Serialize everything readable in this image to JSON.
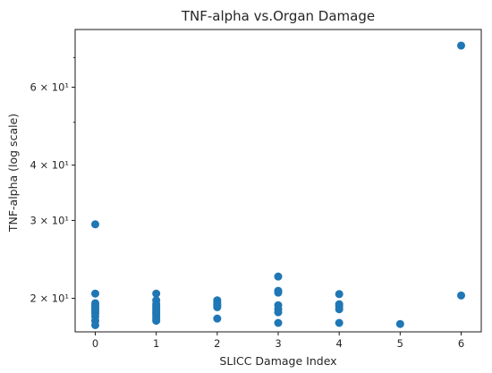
{
  "chart_data": {
    "type": "scatter",
    "title": "TNF-alpha vs.Organ Damage",
    "xlabel": "SLICC Damage Index",
    "ylabel": "TNF-alpha (log scale)",
    "y_scale": "log",
    "xlim": [
      -0.33,
      6.33
    ],
    "ylim": [
      16.8,
      81
    ],
    "x_ticks": [
      {
        "value": 0,
        "label": "0"
      },
      {
        "value": 1,
        "label": "1"
      },
      {
        "value": 2,
        "label": "2"
      },
      {
        "value": 3,
        "label": "3"
      },
      {
        "value": 4,
        "label": "4"
      },
      {
        "value": 5,
        "label": "5"
      },
      {
        "value": 6,
        "label": "6"
      }
    ],
    "y_ticks": [
      {
        "value": 20,
        "label": "2 × 10¹"
      },
      {
        "value": 30,
        "label": "3 × 10¹"
      },
      {
        "value": 40,
        "label": "4 × 10¹"
      },
      {
        "value": 60,
        "label": "6 × 10¹"
      }
    ],
    "y_minor_ticks": [
      50,
      70
    ],
    "grid": false,
    "color": "#1f77b4",
    "points": [
      {
        "x": 0,
        "y": 29.4
      },
      {
        "x": 0,
        "y": 20.5
      },
      {
        "x": 0,
        "y": 19.5
      },
      {
        "x": 0,
        "y": 19.3
      },
      {
        "x": 0,
        "y": 19.1
      },
      {
        "x": 0,
        "y": 18.9
      },
      {
        "x": 0,
        "y": 18.7
      },
      {
        "x": 0,
        "y": 18.5
      },
      {
        "x": 0,
        "y": 18.2
      },
      {
        "x": 0,
        "y": 17.8
      },
      {
        "x": 0,
        "y": 17.4
      },
      {
        "x": 1,
        "y": 20.5
      },
      {
        "x": 1,
        "y": 19.8
      },
      {
        "x": 1,
        "y": 19.4
      },
      {
        "x": 1,
        "y": 19.2
      },
      {
        "x": 1,
        "y": 19.0
      },
      {
        "x": 1,
        "y": 18.85
      },
      {
        "x": 1,
        "y": 18.7
      },
      {
        "x": 1,
        "y": 18.55
      },
      {
        "x": 1,
        "y": 18.4
      },
      {
        "x": 1,
        "y": 18.2
      },
      {
        "x": 1,
        "y": 18.0
      },
      {
        "x": 1,
        "y": 17.8
      },
      {
        "x": 2,
        "y": 19.8
      },
      {
        "x": 2,
        "y": 19.6
      },
      {
        "x": 2,
        "y": 19.4
      },
      {
        "x": 2,
        "y": 19.25
      },
      {
        "x": 2,
        "y": 19.1
      },
      {
        "x": 2,
        "y": 18.0
      },
      {
        "x": 3,
        "y": 22.4
      },
      {
        "x": 3,
        "y": 20.8
      },
      {
        "x": 3,
        "y": 20.6
      },
      {
        "x": 3,
        "y": 19.3
      },
      {
        "x": 3,
        "y": 18.9
      },
      {
        "x": 3,
        "y": 18.6
      },
      {
        "x": 3,
        "y": 17.6
      },
      {
        "x": 4,
        "y": 20.45
      },
      {
        "x": 4,
        "y": 19.4
      },
      {
        "x": 4,
        "y": 19.2
      },
      {
        "x": 4,
        "y": 18.9
      },
      {
        "x": 4,
        "y": 17.6
      },
      {
        "x": 5,
        "y": 17.5
      },
      {
        "x": 6,
        "y": 74.5
      },
      {
        "x": 6,
        "y": 20.3
      }
    ]
  }
}
